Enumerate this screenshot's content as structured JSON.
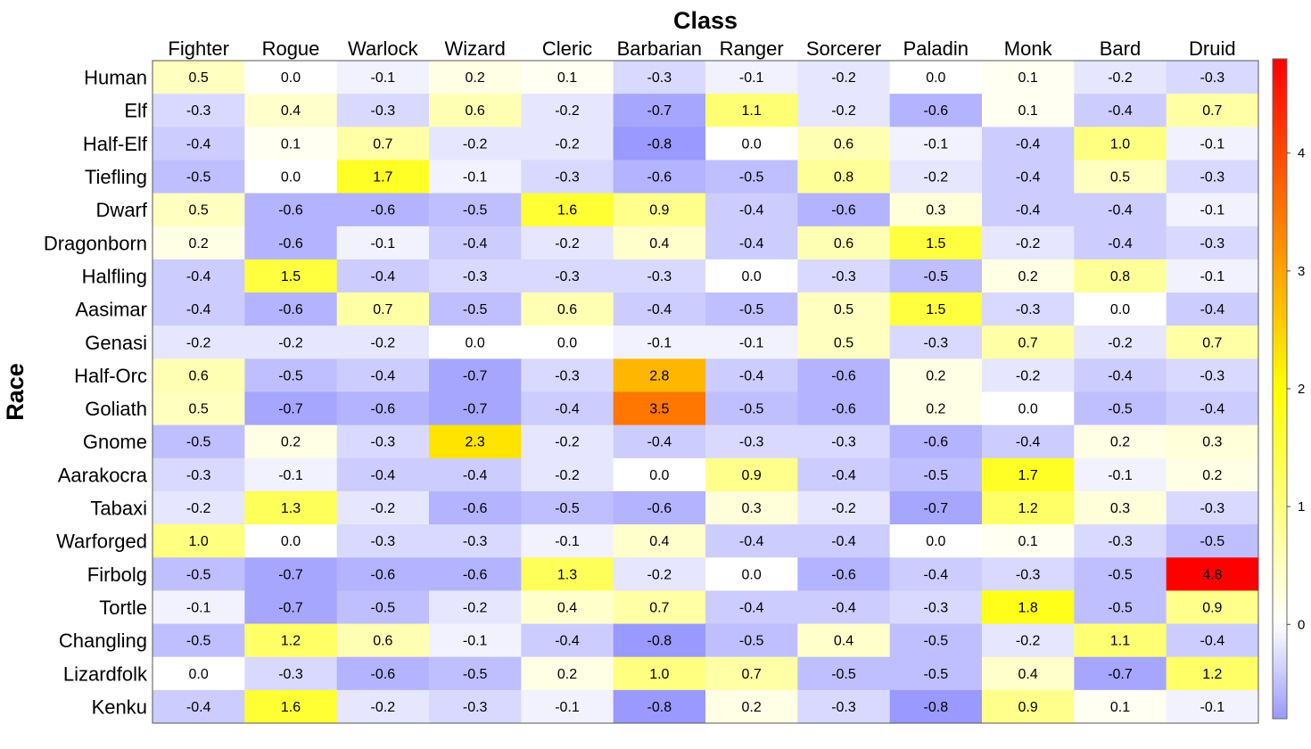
{
  "chart_data": {
    "type": "heatmap",
    "xlabel": "Class",
    "ylabel": "Race",
    "columns": [
      "Fighter",
      "Rogue",
      "Warlock",
      "Wizard",
      "Cleric",
      "Barbarian",
      "Ranger",
      "Sorcerer",
      "Paladin",
      "Monk",
      "Bard",
      "Druid"
    ],
    "rows": [
      "Human",
      "Elf",
      "Half-Elf",
      "Tiefling",
      "Dwarf",
      "Dragonborn",
      "Halfling",
      "Aasimar",
      "Genasi",
      "Half-Orc",
      "Goliath",
      "Gnome",
      "Aarakocra",
      "Tabaxi",
      "Warforged",
      "Firbolg",
      "Tortle",
      "Changling",
      "Lizardfolk",
      "Kenku"
    ],
    "values": [
      [
        0.5,
        0.0,
        -0.1,
        0.2,
        0.1,
        -0.3,
        -0.1,
        -0.2,
        0.0,
        0.1,
        -0.2,
        -0.3
      ],
      [
        -0.3,
        0.4,
        -0.3,
        0.6,
        -0.2,
        -0.7,
        1.1,
        -0.2,
        -0.6,
        0.1,
        -0.4,
        0.7
      ],
      [
        -0.4,
        0.1,
        0.7,
        -0.2,
        -0.2,
        -0.8,
        0.0,
        0.6,
        -0.1,
        -0.4,
        1.0,
        -0.1
      ],
      [
        -0.5,
        0.0,
        1.7,
        -0.1,
        -0.3,
        -0.6,
        -0.5,
        0.8,
        -0.2,
        -0.4,
        0.5,
        -0.3
      ],
      [
        0.5,
        -0.6,
        -0.6,
        -0.5,
        1.6,
        0.9,
        -0.4,
        -0.6,
        0.3,
        -0.4,
        -0.4,
        -0.1
      ],
      [
        0.2,
        -0.6,
        -0.1,
        -0.4,
        -0.2,
        0.4,
        -0.4,
        0.6,
        1.5,
        -0.2,
        -0.4,
        -0.3
      ],
      [
        -0.4,
        1.5,
        -0.4,
        -0.3,
        -0.3,
        -0.3,
        0.0,
        -0.3,
        -0.5,
        0.2,
        0.8,
        -0.1
      ],
      [
        -0.4,
        -0.6,
        0.7,
        -0.5,
        0.6,
        -0.4,
        -0.5,
        0.5,
        1.5,
        -0.3,
        0.0,
        -0.4
      ],
      [
        -0.2,
        -0.2,
        -0.2,
        0.0,
        0.0,
        -0.1,
        -0.1,
        0.5,
        -0.3,
        0.7,
        -0.2,
        0.7
      ],
      [
        0.6,
        -0.5,
        -0.4,
        -0.7,
        -0.3,
        2.8,
        -0.4,
        -0.6,
        0.2,
        -0.2,
        -0.4,
        -0.3
      ],
      [
        0.5,
        -0.7,
        -0.6,
        -0.7,
        -0.4,
        3.5,
        -0.5,
        -0.6,
        0.2,
        0.0,
        -0.5,
        -0.4
      ],
      [
        -0.5,
        0.2,
        -0.3,
        2.3,
        -0.2,
        -0.4,
        -0.3,
        -0.3,
        -0.6,
        -0.4,
        0.2,
        0.3
      ],
      [
        -0.3,
        -0.1,
        -0.4,
        -0.4,
        -0.2,
        0.0,
        0.9,
        -0.4,
        -0.5,
        1.7,
        -0.1,
        0.2
      ],
      [
        -0.2,
        1.3,
        -0.2,
        -0.6,
        -0.5,
        -0.6,
        0.3,
        -0.2,
        -0.7,
        1.2,
        0.3,
        -0.3
      ],
      [
        1.0,
        0.0,
        -0.3,
        -0.3,
        -0.1,
        0.4,
        -0.4,
        -0.4,
        0.0,
        0.1,
        -0.3,
        -0.5
      ],
      [
        -0.5,
        -0.7,
        -0.6,
        -0.6,
        1.3,
        -0.2,
        0.0,
        -0.6,
        -0.4,
        -0.3,
        -0.5,
        4.8
      ],
      [
        -0.1,
        -0.7,
        -0.5,
        -0.2,
        0.4,
        0.7,
        -0.4,
        -0.4,
        -0.3,
        1.8,
        -0.5,
        0.9
      ],
      [
        -0.5,
        1.2,
        0.6,
        -0.1,
        -0.4,
        -0.8,
        -0.5,
        0.4,
        -0.5,
        -0.2,
        1.1,
        -0.4
      ],
      [
        0.0,
        -0.3,
        -0.6,
        -0.5,
        0.2,
        1.0,
        0.7,
        -0.5,
        -0.5,
        0.4,
        -0.7,
        1.2
      ],
      [
        -0.4,
        1.6,
        -0.2,
        -0.3,
        -0.1,
        -0.8,
        0.2,
        -0.3,
        -0.8,
        0.9,
        0.1,
        -0.1
      ]
    ],
    "colorbar": {
      "ticks": [
        0,
        1,
        2,
        3,
        4
      ],
      "range": [
        -0.8,
        4.8
      ],
      "colors": {
        "low": "#9999ff",
        "zero": "#ffffff",
        "mid": "#ffff00",
        "high": "#ff0000"
      },
      "mid_value": 2.0
    }
  }
}
